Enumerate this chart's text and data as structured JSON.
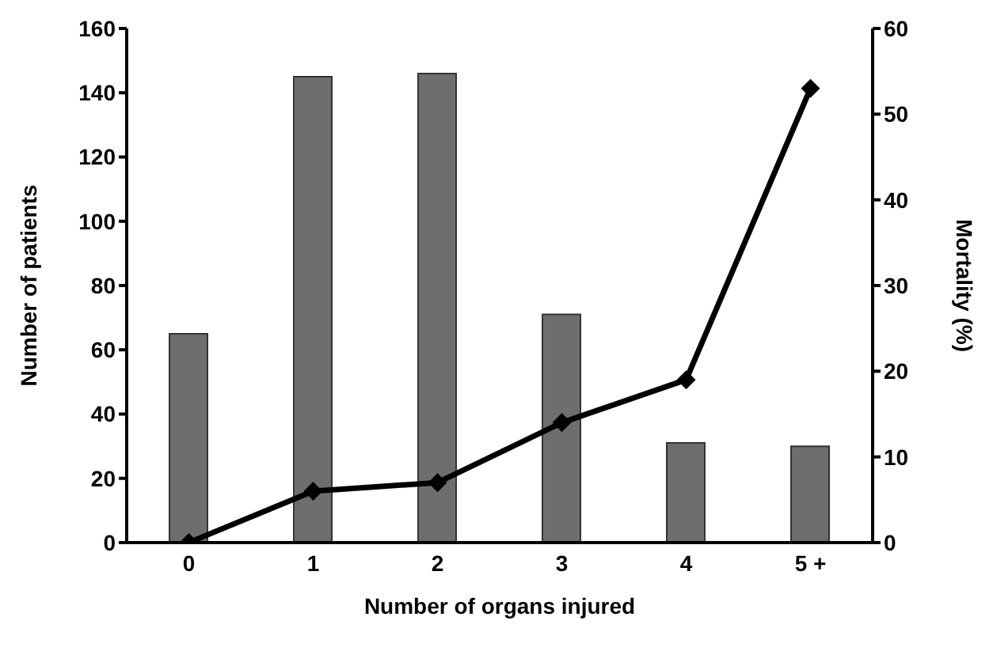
{
  "chart_data": {
    "type": "bar",
    "xlabel": "Number of organs injured",
    "ylabel": "Number of patients",
    "y2label": "Mortality (%)",
    "categories": [
      "0",
      "1",
      "2",
      "3",
      "4",
      "5 +"
    ],
    "series": [
      {
        "color": "#6e6e6e",
        "values": [
          65,
          145,
          146,
          71,
          31,
          30
        ]
      },
      {
        "type": "line",
        "axis": "y2",
        "color": "#000000",
        "values": [
          0,
          6,
          7,
          14,
          19,
          53
        ]
      }
    ],
    "ylim": [
      0,
      160
    ],
    "yticks": [
      0,
      20,
      40,
      60,
      80,
      100,
      120,
      140,
      160
    ],
    "y2lim": [
      0,
      60
    ],
    "y2ticks": [
      0,
      10,
      20,
      30,
      40,
      50,
      60
    ],
    "marker": "diamond",
    "line_style": "solid"
  }
}
